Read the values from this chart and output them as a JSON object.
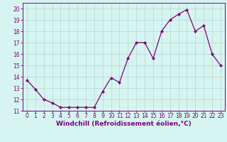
{
  "x": [
    0,
    1,
    2,
    3,
    4,
    5,
    6,
    7,
    8,
    9,
    10,
    11,
    12,
    13,
    14,
    15,
    16,
    17,
    18,
    19,
    20,
    21,
    22,
    23
  ],
  "y": [
    13.7,
    12.9,
    12.0,
    11.7,
    11.3,
    11.3,
    11.3,
    11.3,
    11.3,
    12.7,
    13.9,
    13.5,
    15.6,
    17.0,
    17.0,
    15.6,
    18.0,
    19.0,
    19.5,
    19.9,
    18.0,
    18.5,
    16.0,
    15.0
  ],
  "line_color": "#800080",
  "marker": "D",
  "marker_size": 2,
  "bg_color": "#d6f5f0",
  "grid_color": "#b8d4d0",
  "xlabel": "Windchill (Refroidissement éolien,°C)",
  "ylabel": "",
  "xlim": [
    -0.5,
    23.5
  ],
  "ylim": [
    11,
    20.5
  ],
  "yticks": [
    11,
    12,
    13,
    14,
    15,
    16,
    17,
    18,
    19,
    20
  ],
  "xticks": [
    0,
    1,
    2,
    3,
    4,
    5,
    6,
    7,
    8,
    9,
    10,
    11,
    12,
    13,
    14,
    15,
    16,
    17,
    18,
    19,
    20,
    21,
    22,
    23
  ],
  "tick_color": "#800080",
  "label_fontsize": 6.5,
  "tick_fontsize": 5.5,
  "spine_color": "#800080"
}
